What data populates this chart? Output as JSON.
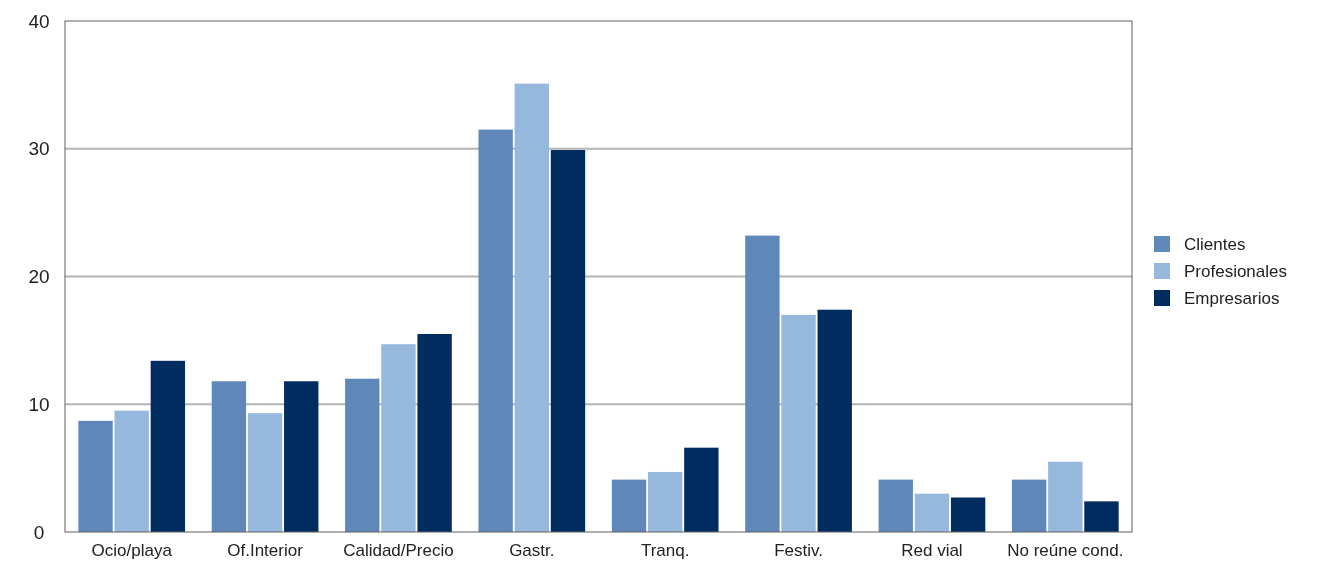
{
  "chart_data": {
    "type": "bar",
    "categories": [
      "Ocio/playa",
      "Of.Interior",
      "Calidad/Precio",
      "Gastr.",
      "Tranq.",
      "Festiv.",
      "Red vial",
      "No reúne cond."
    ],
    "series": [
      {
        "name": "Clientes",
        "color": "#5f87ba",
        "values": [
          8.7,
          11.8,
          12.0,
          31.5,
          4.1,
          23.2,
          4.1,
          4.1
        ]
      },
      {
        "name": "Profesionales",
        "color": "#96b8dc",
        "values": [
          9.5,
          9.3,
          14.7,
          35.1,
          4.7,
          17.0,
          3.0,
          5.5
        ]
      },
      {
        "name": "Empresarios",
        "color": "#002c5f",
        "values": [
          13.4,
          11.8,
          15.5,
          29.9,
          6.6,
          17.4,
          2.7,
          2.4
        ]
      }
    ],
    "ylim": [
      0,
      40
    ],
    "yticks": [
      0,
      10,
      20,
      30,
      40
    ],
    "grid": "y",
    "legend": "right"
  }
}
